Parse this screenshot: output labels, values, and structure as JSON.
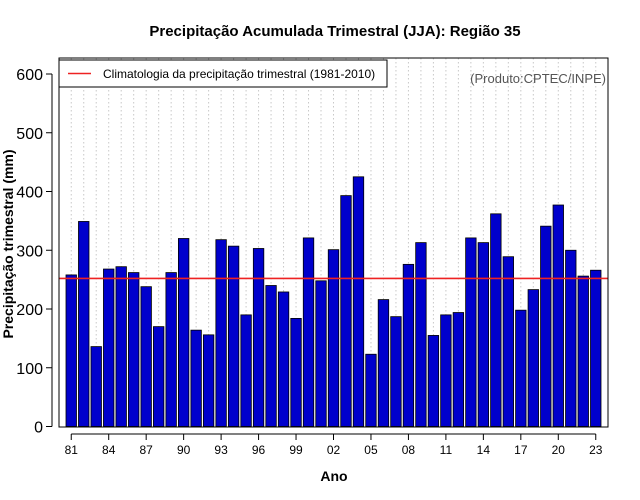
{
  "chart_data": {
    "type": "bar",
    "title": "Precipitação Acumulada Trimestral (JJA): Região 35",
    "xlabel": "Ano",
    "ylabel": "Precipitação trimestral (mm)",
    "ylim": [
      0,
      600
    ],
    "yticks": [
      0,
      100,
      200,
      300,
      400,
      500,
      600
    ],
    "categories": [
      "1981",
      "1982",
      "1983",
      "1984",
      "1985",
      "1986",
      "1987",
      "1988",
      "1989",
      "1990",
      "1991",
      "1992",
      "1993",
      "1994",
      "1995",
      "1996",
      "1997",
      "1998",
      "1999",
      "2000",
      "2001",
      "2002",
      "2003",
      "2004",
      "2005",
      "2006",
      "2007",
      "2008",
      "2009",
      "2010",
      "2011",
      "2012",
      "2013",
      "2014",
      "2015",
      "2016",
      "2017",
      "2018",
      "2019",
      "2020",
      "2021",
      "2022",
      "2023"
    ],
    "tick_labels": [
      "81",
      "84",
      "87",
      "90",
      "93",
      "96",
      "99",
      "02",
      "05",
      "08",
      "11",
      "14",
      "17",
      "20",
      "23"
    ],
    "series": [
      {
        "name": "Precipitação trimestral",
        "color": "#0000cc",
        "values": [
          258,
          349,
          136,
          268,
          272,
          262,
          238,
          170,
          262,
          320,
          164,
          156,
          318,
          307,
          190,
          303,
          240,
          229,
          184,
          321,
          248,
          301,
          393,
          425,
          123,
          216,
          187,
          276,
          313,
          155,
          190,
          194,
          321,
          313,
          362,
          289,
          198,
          233,
          341,
          377,
          300,
          256,
          266
        ]
      }
    ],
    "reference_line": {
      "label": "Climatologia da precipitação trimestral (1981-2010)",
      "value": 252,
      "color": "#ee2222"
    },
    "grid": true,
    "legend_position": "top-left",
    "annotation": "(Produto:CPTEC/INPE)"
  }
}
